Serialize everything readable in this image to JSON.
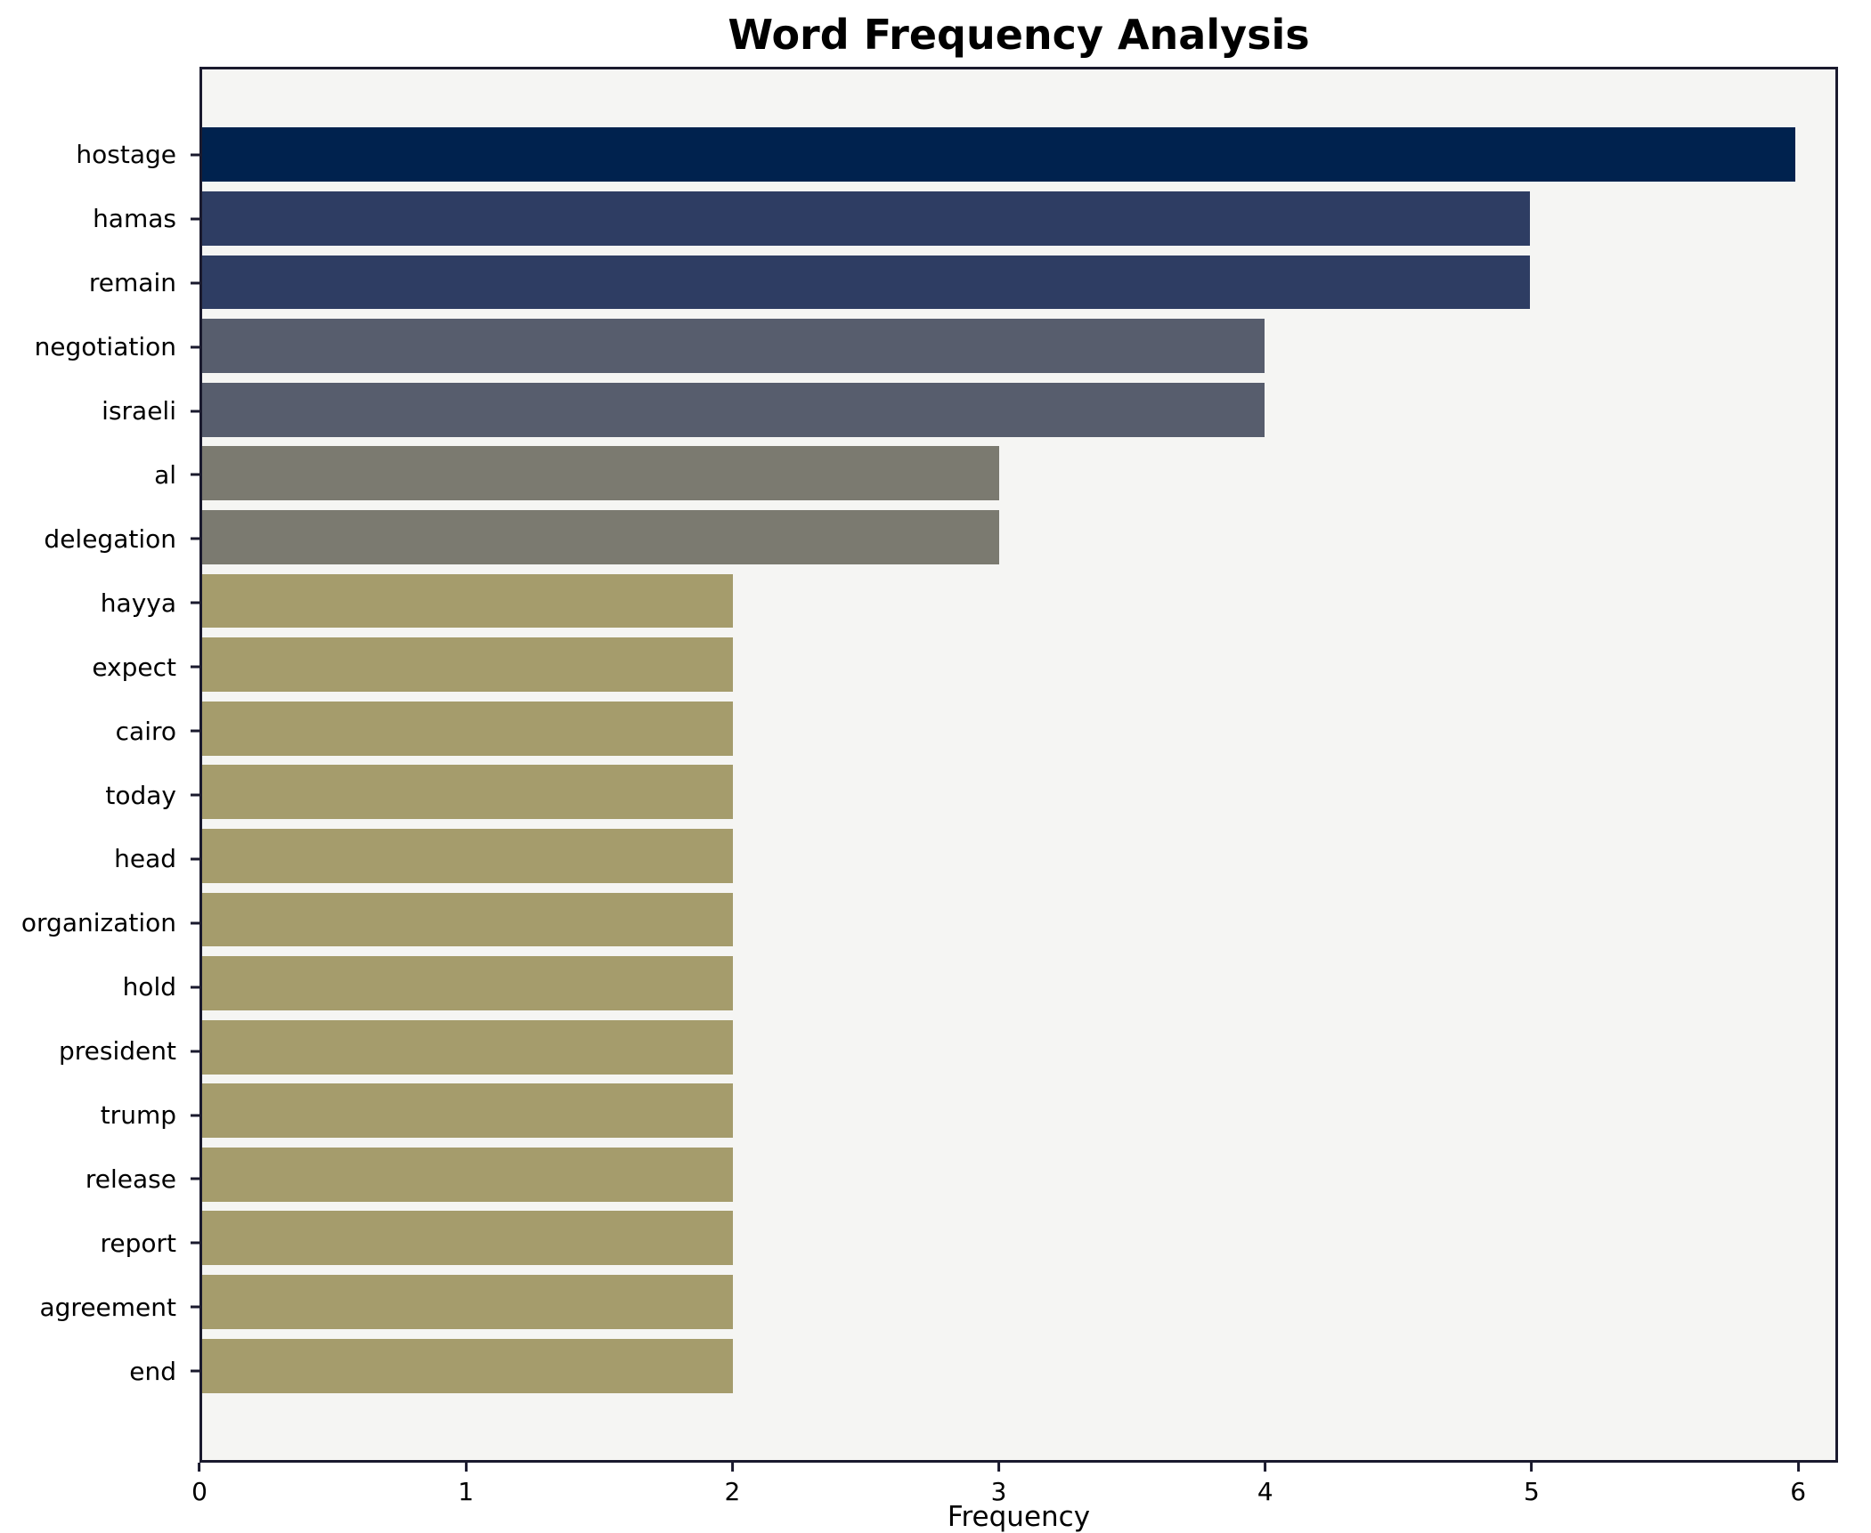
{
  "chart_data": {
    "type": "bar",
    "orientation": "horizontal",
    "title": "Word Frequency Analysis",
    "xlabel": "Frequency",
    "ylabel": "",
    "xlim": [
      0,
      6.15
    ],
    "xticks": [
      0,
      1,
      2,
      3,
      4,
      5,
      6
    ],
    "grid": false,
    "legend": "none",
    "categories": [
      "hostage",
      "hamas",
      "remain",
      "negotiation",
      "israeli",
      "al",
      "delegation",
      "hayya",
      "expect",
      "cairo",
      "today",
      "head",
      "organization",
      "hold",
      "president",
      "trump",
      "release",
      "report",
      "agreement",
      "end"
    ],
    "values": [
      6,
      5,
      5,
      4,
      4,
      3,
      3,
      2,
      2,
      2,
      2,
      2,
      2,
      2,
      2,
      2,
      2,
      2,
      2,
      2
    ],
    "bar_colors": [
      "#00224e",
      "#2e3d63",
      "#2e3d63",
      "#575d6d",
      "#575d6d",
      "#7b7a70",
      "#7b7a70",
      "#a59c6c",
      "#a59c6c",
      "#a59c6c",
      "#a59c6c",
      "#a59c6c",
      "#a59c6c",
      "#a59c6c",
      "#a59c6c",
      "#a59c6c",
      "#a59c6c",
      "#a59c6c",
      "#a59c6c",
      "#a59c6c"
    ]
  },
  "colors": {
    "figure_background": "#ffffff",
    "plot_background": "#f5f5f3",
    "spine": "#1a1a2e",
    "text": "#000000"
  }
}
